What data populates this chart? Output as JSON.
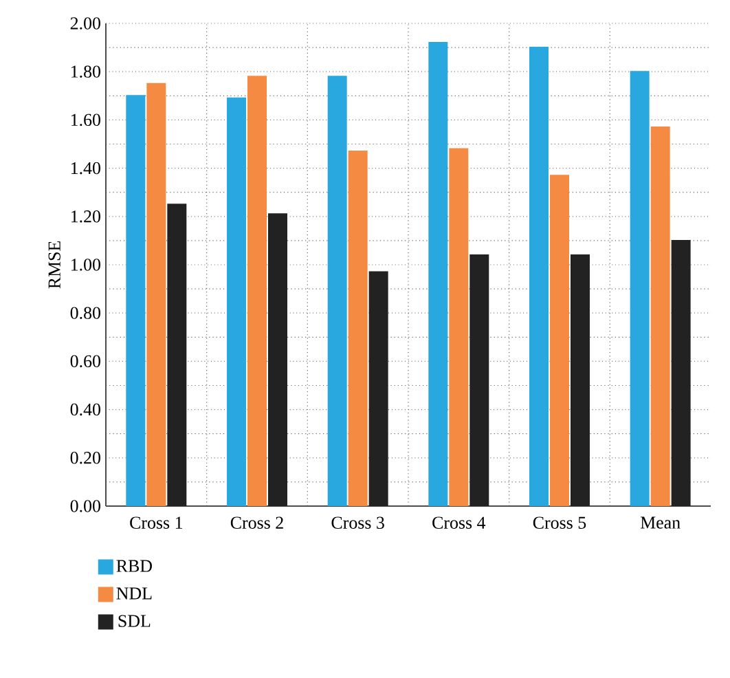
{
  "chart_data": {
    "type": "bar",
    "ylabel": "RMSE",
    "categories": [
      "Cross 1",
      "Cross 2",
      "Cross 3",
      "Cross 4",
      "Cross 5",
      "Mean"
    ],
    "series": [
      {
        "name": "RBD",
        "color": "#29a8e0",
        "values": [
          1.7,
          1.69,
          1.78,
          1.92,
          1.9,
          1.8
        ]
      },
      {
        "name": "NDL",
        "color": "#f58a42",
        "values": [
          1.75,
          1.78,
          1.47,
          1.48,
          1.37,
          1.57
        ]
      },
      {
        "name": "SDL",
        "color": "#222222",
        "values": [
          1.25,
          1.21,
          0.97,
          1.04,
          1.04,
          1.1
        ]
      }
    ],
    "ylim": [
      0,
      2
    ],
    "yticks": [
      {
        "value": 0,
        "label": "0.00"
      },
      {
        "value": 0.2,
        "label": "0.20"
      },
      {
        "value": 0.4,
        "label": "0.40"
      },
      {
        "value": 0.6,
        "label": "0.60"
      },
      {
        "value": 0.8,
        "label": "0.80"
      },
      {
        "value": 1.0,
        "label": "1.00"
      },
      {
        "value": 1.2,
        "label": "1.20"
      },
      {
        "value": 1.4,
        "label": "1.40"
      },
      {
        "value": 1.6,
        "label": "1.60"
      },
      {
        "value": 1.8,
        "label": "1.80"
      },
      {
        "value": 2.0,
        "label": "2.00"
      }
    ],
    "grid": true,
    "legend": "bottom left"
  }
}
